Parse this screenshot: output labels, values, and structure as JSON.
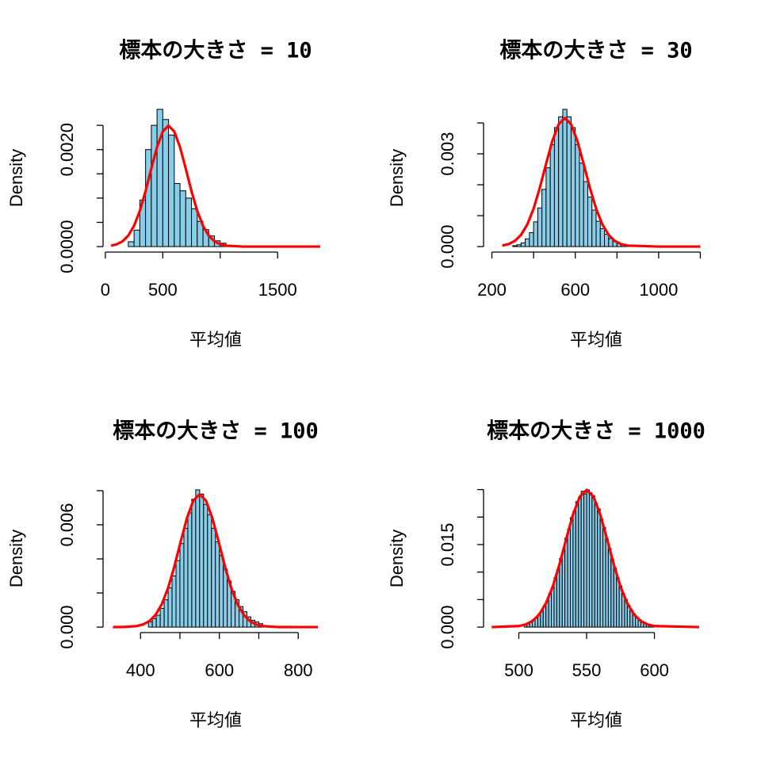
{
  "chart_data": [
    {
      "type": "histogram",
      "title": "標本の大きさ = 10",
      "xlabel": "平均値",
      "ylabel": "Density",
      "color": "#87ceeb",
      "bins": [
        200,
        250,
        300,
        350,
        400,
        450,
        500,
        550,
        600,
        650,
        700,
        750,
        800,
        850,
        900,
        950,
        1000,
        1050,
        1100,
        1150
      ],
      "values": [
        0.0001,
        0.00034,
        0.00096,
        0.002,
        0.0025,
        0.00283,
        0.00262,
        0.0023,
        0.0013,
        0.00115,
        0.001,
        0.00078,
        0.00052,
        0.00035,
        0.00022,
        0.00012,
        7e-05,
        3e-05,
        2e-05
      ],
      "curve": {
        "color": "#ff0000",
        "x": [
          50,
          100,
          150,
          200,
          250,
          300,
          350,
          400,
          450,
          500,
          550,
          600,
          650,
          700,
          750,
          800,
          850,
          900,
          950,
          1000,
          1050,
          1200,
          1500,
          1870
        ],
        "values": [
          1.89e-05,
          4.77e-05,
          0.000109,
          0.000228,
          0.00043,
          0.000736,
          0.001141,
          0.001607,
          0.002051,
          0.002374,
          0.002493,
          0.002374,
          0.002051,
          0.001607,
          0.001141,
          0.000736,
          0.00043,
          0.000228,
          0.000109,
          4.77e-05,
          1.89e-05,
          6e-07,
          0,
          0
        ]
      },
      "xlim": [
        -20,
        1940
      ],
      "ylim": [
        -0.000113,
        0.002943
      ],
      "xticks": [
        0,
        500,
        {
          "value": 1000,
          "label": null
        },
        1500
      ],
      "yticks": [
        {
          "value": 0,
          "label": "0.0000"
        },
        {
          "value": 0.0005,
          "label": null
        },
        {
          "value": 0.001,
          "label": null
        },
        {
          "value": 0.0015,
          "label": null
        },
        {
          "value": 0.002,
          "label": "0.0020"
        },
        {
          "value": 0.0025,
          "label": null
        }
      ]
    },
    {
      "type": "histogram",
      "title": "標本の大きさ = 30",
      "xlabel": "平均値",
      "ylabel": "Density",
      "color": "#87ceeb",
      "bins": [
        300,
        320,
        340,
        360,
        380,
        400,
        420,
        440,
        460,
        480,
        500,
        520,
        540,
        560,
        580,
        600,
        620,
        640,
        660,
        680,
        700,
        720,
        740,
        760,
        780,
        800,
        820,
        840,
        860,
        880
      ],
      "values": [
        3e-05,
        6e-05,
        0.00012,
        0.00025,
        0.00045,
        0.0008,
        0.00125,
        0.00185,
        0.00255,
        0.0033,
        0.00385,
        0.0042,
        0.00444,
        0.0042,
        0.00385,
        0.0033,
        0.0027,
        0.0021,
        0.0016,
        0.00118,
        0.00082,
        0.00058,
        0.0004,
        0.00026,
        0.00017,
        0.00011,
        7e-05,
        4e-05,
        2e-05
      ],
      "curve": {
        "color": "#ff0000",
        "x": [
          250,
          280,
          310,
          340,
          370,
          400,
          430,
          460,
          490,
          520,
          550,
          580,
          610,
          640,
          670,
          700,
          730,
          760,
          790,
          820,
          850,
          1000,
          1200
        ],
        "values": [
          3.15e-05,
          7.96e-05,
          0.000182,
          0.00038,
          0.000717,
          0.001226,
          0.001903,
          0.002678,
          0.003419,
          0.003957,
          0.004156,
          0.003957,
          0.003419,
          0.002678,
          0.001903,
          0.001226,
          0.000717,
          0.00038,
          0.000182,
          7.96e-05,
          3.15e-05,
          0,
          0
        ]
      },
      "xlim": [
        160,
        1240
      ],
      "ylim": [
        -0.000178,
        0.004618
      ],
      "xticks": [
        200,
        {
          "value": 400,
          "label": null
        },
        600,
        {
          "value": 800,
          "label": null
        },
        1000,
        {
          "value": 1200,
          "label": null
        }
      ],
      "yticks": [
        {
          "value": 0,
          "label": "0.000"
        },
        {
          "value": 0.001,
          "label": null
        },
        {
          "value": 0.002,
          "label": null
        },
        0.003,
        {
          "value": 0.004,
          "label": null
        }
      ]
    },
    {
      "type": "histogram",
      "title": "標本の大きさ = 100",
      "xlabel": "平均値",
      "ylabel": "Density",
      "color": "#87ceeb",
      "bins": [
        420,
        430,
        440,
        450,
        460,
        470,
        480,
        490,
        500,
        510,
        520,
        530,
        540,
        550,
        560,
        570,
        580,
        590,
        600,
        610,
        620,
        630,
        640,
        650,
        660,
        670,
        680,
        690,
        700,
        710,
        720
      ],
      "values": [
        0.0003,
        0.0005,
        0.0007,
        0.0011,
        0.0016,
        0.0023,
        0.003,
        0.0039,
        0.0049,
        0.0058,
        0.0067,
        0.0075,
        0.00805,
        0.0078,
        0.0072,
        0.0066,
        0.0058,
        0.005,
        0.0042,
        0.0034,
        0.0027,
        0.0021,
        0.0016,
        0.0012,
        0.0009,
        0.0006,
        0.0004,
        0.0003,
        0.0002,
        0.0001
      ],
      "curve": {
        "color": "#ff0000",
        "x": [
          330,
          340,
          360,
          390,
          406,
          422,
          438,
          454,
          470,
          486,
          502,
          518,
          534,
          550,
          566,
          582,
          598,
          614,
          630,
          646,
          662,
          678,
          694,
          710,
          750,
          850
        ],
        "values": [
          0,
          1.8e-06,
          7.9e-06,
          5.9e-05,
          0.0001492,
          0.000342,
          0.000712,
          0.001343,
          0.002299,
          0.003569,
          0.005021,
          0.00641,
          0.007418,
          0.007792,
          0.007418,
          0.00641,
          0.005021,
          0.003569,
          0.002299,
          0.001343,
          0.000712,
          0.000342,
          0.0001492,
          5.9e-05,
          1.8e-06,
          0
        ]
      },
      "xlim": [
        305,
        876
      ],
      "ylim": [
        -0.000322,
        0.008372
      ],
      "xticks": [
        400,
        {
          "value": 500,
          "label": null
        },
        600,
        {
          "value": 700,
          "label": null
        },
        800
      ],
      "yticks": [
        {
          "value": 0,
          "label": "0.000"
        },
        {
          "value": 0.002,
          "label": null
        },
        {
          "value": 0.004,
          "label": null
        },
        0.006,
        {
          "value": 0.008,
          "label": null
        }
      ]
    },
    {
      "type": "histogram",
      "title": "標本の大きさ = 1000",
      "xlabel": "平均値",
      "ylabel": "Density",
      "color": "#87ceeb",
      "bins": [
        504,
        506,
        508,
        510,
        512,
        514,
        516,
        518,
        520,
        522,
        524,
        526,
        528,
        530,
        532,
        534,
        536,
        538,
        540,
        542,
        544,
        546,
        548,
        550,
        552,
        554,
        556,
        558,
        560,
        562,
        564,
        566,
        568,
        570,
        572,
        574,
        576,
        578,
        580,
        582,
        584,
        586,
        588,
        590,
        592,
        594,
        596,
        598,
        600
      ],
      "values": [
        0.0004,
        0.0007,
        0.0009,
        0.00135,
        0.00165,
        0.00235,
        0.0029,
        0.0039,
        0.0047,
        0.0061,
        0.0072,
        0.009,
        0.0104,
        0.0125,
        0.014,
        0.0162,
        0.0178,
        0.0199,
        0.0211,
        0.0228,
        0.0236,
        0.0247,
        0.0242,
        0.02495,
        0.0244,
        0.0239,
        0.0225,
        0.0215,
        0.0196,
        0.0181,
        0.016,
        0.0143,
        0.0124,
        0.0107,
        0.0089,
        0.0075,
        0.0061,
        0.005,
        0.004,
        0.0031,
        0.0024,
        0.0018,
        0.0014,
        0.001,
        0.00075,
        0.0005,
        0.0003,
        0.0002
      ],
      "curve": {
        "color": "#ff0000",
        "x": [
          480,
          500,
          505,
          510,
          515,
          520,
          525,
          530,
          535,
          540,
          545,
          550,
          555,
          560,
          565,
          570,
          575,
          580,
          585,
          590,
          595,
          600,
          633
        ],
        "values": [
          1.7e-06,
          0.000189,
          0.000477,
          0.001095,
          0.002279,
          0.004299,
          0.007356,
          0.01142,
          0.016068,
          0.020511,
          0.023737,
          0.024934,
          0.023737,
          0.020511,
          0.016068,
          0.01142,
          0.007356,
          0.004299,
          0.002279,
          0.001095,
          0.000477,
          0.000189,
          0
        ]
      },
      "xlim": [
        474,
        640
      ],
      "ylim": [
        -0.000998,
        0.02595
      ],
      "xticks": [
        500,
        550,
        600
      ],
      "yticks": [
        {
          "value": 0,
          "label": "0.000"
        },
        {
          "value": 0.005,
          "label": null
        },
        {
          "value": 0.01,
          "label": null
        },
        0.015,
        {
          "value": 0.02,
          "label": null
        },
        {
          "value": 0.025,
          "label": null
        }
      ]
    }
  ]
}
